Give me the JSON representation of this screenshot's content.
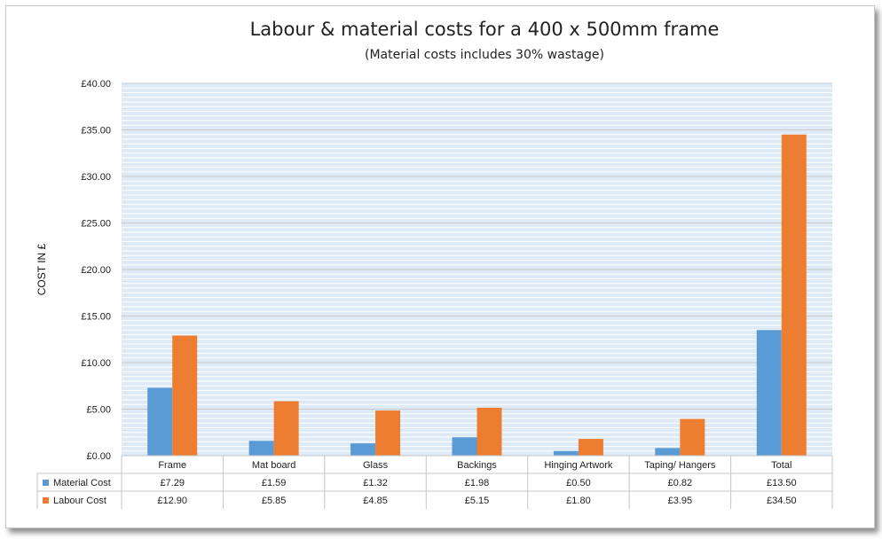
{
  "chart_data": {
    "type": "bar",
    "title": "Labour & material costs for a 400 x 500mm frame",
    "subtitle": "(Material costs includes 30% wastage)",
    "ylabel": "COST IN £",
    "xlabel": "",
    "ylim": [
      0,
      40
    ],
    "ytick_step": 5,
    "yticks": [
      "£0.00",
      "£5.00",
      "£10.00",
      "£15.00",
      "£20.00",
      "£25.00",
      "£30.00",
      "£35.00",
      "£40.00"
    ],
    "grid": true,
    "legend": "data-table-bottom",
    "categories": [
      "Frame",
      "Mat board",
      "Glass",
      "Backings",
      "Hinging Artwork",
      "Taping/ Hangers",
      "Total"
    ],
    "series": [
      {
        "name": "Material Cost",
        "color": "#5b9bd5",
        "values": [
          7.29,
          1.59,
          1.32,
          1.98,
          0.5,
          0.82,
          13.5
        ],
        "labels": [
          "£7.29",
          "£1.59",
          "£1.32",
          "£1.98",
          "£0.50",
          "£0.82",
          "£13.50"
        ]
      },
      {
        "name": "Labour Cost",
        "color": "#ed7d31",
        "values": [
          12.9,
          5.85,
          4.85,
          5.15,
          1.8,
          3.95,
          34.5
        ],
        "labels": [
          "£12.90",
          "£5.85",
          "£4.85",
          "£5.15",
          "£1.80",
          "£3.95",
          "£34.50"
        ]
      }
    ]
  }
}
